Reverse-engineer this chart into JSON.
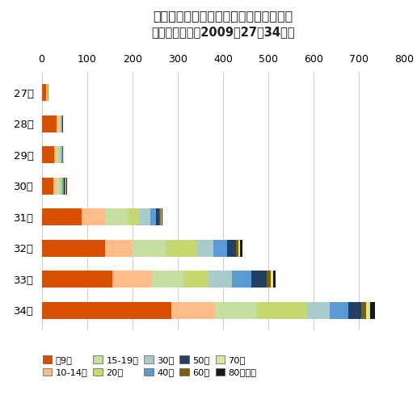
{
  "title_line1": "東京都におけるインフルエンザの報告数",
  "title_line2": "（年齢階層別、2009年27〜34週）",
  "weeks": [
    "27週",
    "28週",
    "29週",
    "30週",
    "31週",
    "32週",
    "33週",
    "34週"
  ],
  "age_groups": [
    "〜9歳",
    "10-14歳",
    "15-19歳",
    "20代",
    "30代",
    "40代",
    "50代",
    "60代",
    "70代",
    "80歳以上"
  ],
  "colors": [
    "#D94F00",
    "#FFBB88",
    "#C5DFA0",
    "#C8D870",
    "#A8CCCC",
    "#5B9BD5",
    "#243F60",
    "#7F6000",
    "#D9E8A0",
    "#1A1A1A"
  ],
  "data": [
    [
      10,
      1,
      1,
      1,
      1,
      1,
      0,
      0,
      0,
      0
    ],
    [
      33,
      5,
      2,
      2,
      2,
      2,
      1,
      0,
      0,
      0
    ],
    [
      27,
      6,
      4,
      3,
      3,
      2,
      1,
      1,
      1,
      0
    ],
    [
      25,
      8,
      5,
      4,
      4,
      3,
      2,
      2,
      1,
      2
    ],
    [
      88,
      52,
      50,
      25,
      25,
      12,
      8,
      3,
      2,
      2
    ],
    [
      140,
      58,
      75,
      70,
      35,
      30,
      20,
      5,
      5,
      5
    ],
    [
      155,
      88,
      70,
      55,
      52,
      42,
      35,
      8,
      5,
      5
    ],
    [
      285,
      95,
      95,
      110,
      50,
      42,
      28,
      10,
      10,
      10
    ]
  ],
  "xlim": [
    0,
    800
  ],
  "xticks": [
    0,
    100,
    200,
    300,
    400,
    500,
    600,
    700,
    800
  ],
  "bg_color": "#FFFFFF",
  "grid_color": "#BBBBBB",
  "title1_color": "#1F1F1F",
  "title2_color": "#1F1F1F",
  "title1_fontsize": 11.5,
  "title2_fontsize": 10.5,
  "bar_height": 0.55,
  "ytick_fontsize": 9.5,
  "xtick_fontsize": 9
}
